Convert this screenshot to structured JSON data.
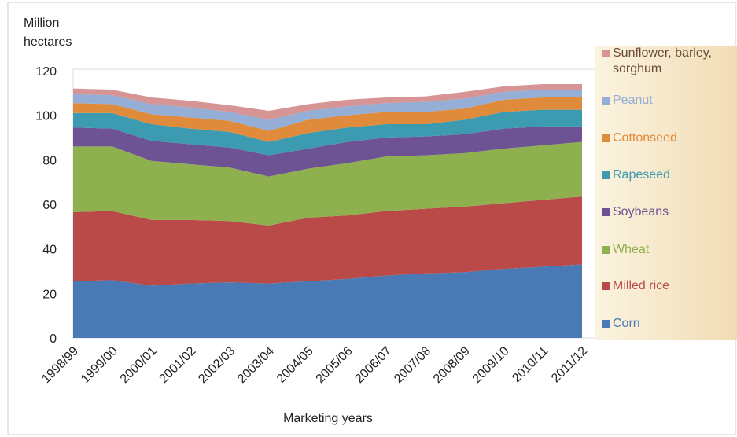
{
  "chart_data": {
    "type": "stacked_area",
    "ylabel": "Million hectares",
    "xlabel": "Marketing years",
    "categories": [
      "1998/99",
      "1999/00",
      "2000/01",
      "2001/02",
      "2002/03",
      "2003/04",
      "2004/05",
      "2005/06",
      "2006/07",
      "2007/08",
      "2008/09",
      "2009/10",
      "2010/11",
      "2011/12"
    ],
    "series": [
      {
        "name": "Corn",
        "color": "#4a7ab5",
        "values": [
          25.5,
          26,
          23.5,
          24.5,
          25,
          24.5,
          25.5,
          26.5,
          28,
          29,
          29.5,
          31,
          32,
          33
        ]
      },
      {
        "name": "Milled rice",
        "color": "#b94a48",
        "values": [
          31,
          31,
          29.5,
          28.5,
          27.5,
          26,
          28.5,
          28.5,
          29,
          29,
          29.5,
          29.5,
          30,
          30.5
        ]
      },
      {
        "name": "Wheat",
        "color": "#8fb04f",
        "values": [
          29.5,
          29,
          26.5,
          25,
          24,
          22,
          22,
          23.5,
          24.5,
          24,
          24,
          24.5,
          24.5,
          24.5
        ]
      },
      {
        "name": "Soybeans",
        "color": "#6e5394",
        "values": [
          8.5,
          8,
          9,
          9,
          9,
          9.5,
          9,
          9.5,
          8.5,
          8.5,
          8.5,
          9,
          8.5,
          7
        ]
      },
      {
        "name": "Rapeseed",
        "color": "#3c9bb0",
        "values": [
          6.5,
          7,
          7.5,
          7,
          7,
          6,
          7,
          6.5,
          6,
          5.5,
          6.5,
          7.5,
          7.5,
          7.5
        ]
      },
      {
        "name": "Cottonseed",
        "color": "#e08a3c",
        "values": [
          4.5,
          4,
          4.5,
          5,
          5,
          5,
          6,
          5.5,
          5.5,
          5.5,
          5,
          5.5,
          5.5,
          5.5
        ]
      },
      {
        "name": "Peanut",
        "color": "#94aed6",
        "values": [
          4,
          4,
          4.5,
          4.5,
          4,
          5,
          4,
          4,
          4,
          4.5,
          4.5,
          3.5,
          3.5,
          3.5
        ]
      },
      {
        "name": "Sunflower, barley, sorghum",
        "color": "#d69494",
        "values": [
          2.5,
          2.5,
          3,
          3,
          3,
          4,
          3,
          3,
          2.5,
          2.5,
          3,
          2.5,
          2.5,
          2.5
        ]
      }
    ],
    "ylim": [
      0,
      120
    ],
    "yticks": [
      0,
      20,
      40,
      60,
      80,
      100,
      120
    ]
  }
}
